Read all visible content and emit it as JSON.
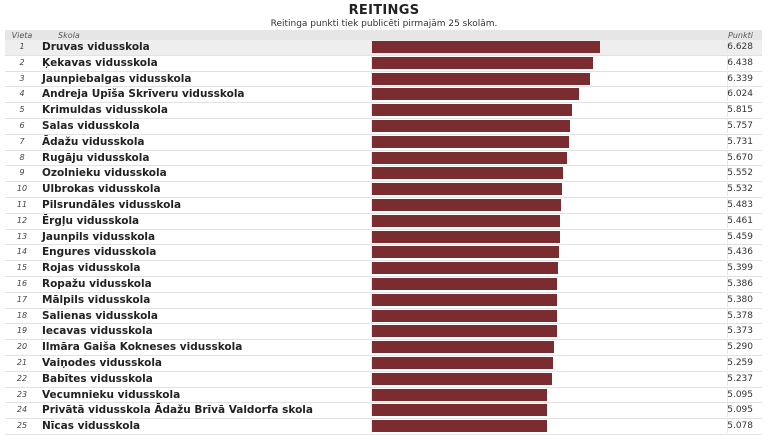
{
  "page": {
    "title": "REITINGS",
    "subtitle": "Reitinga punkti tiek publicēti pirmajām 25 skolām."
  },
  "header": {
    "rank": "Vieta",
    "school": "Skola",
    "points": "Punkti"
  },
  "colors": {
    "bar": "#7a2c30",
    "header_bg": "#e6e6e6",
    "first_row_bg": "#eeeeee"
  },
  "max_points": 6.628,
  "rows": [
    {
      "rank": "1",
      "school": "Druvas vidusskola",
      "points": "6.628"
    },
    {
      "rank": "2",
      "school": "Ķekavas vidusskola",
      "points": "6.438"
    },
    {
      "rank": "3",
      "school": "Jaunpiebalgas vidusskola",
      "points": "6.339"
    },
    {
      "rank": "4",
      "school": "Andreja Upīša Skrīveru vidusskola",
      "points": "6.024"
    },
    {
      "rank": "5",
      "school": "Krimuldas vidusskola",
      "points": "5.815"
    },
    {
      "rank": "6",
      "school": "Salas vidusskola",
      "points": "5.757"
    },
    {
      "rank": "7",
      "school": "Ādažu vidusskola",
      "points": "5.731"
    },
    {
      "rank": "8",
      "school": "Rugāju vidusskola",
      "points": "5.670"
    },
    {
      "rank": "9",
      "school": "Ozolnieku vidusskola",
      "points": "5.552"
    },
    {
      "rank": "10",
      "school": "Ulbrokas vidusskola",
      "points": "5.532"
    },
    {
      "rank": "11",
      "school": "Pilsrundāles vidusskola",
      "points": "5.483"
    },
    {
      "rank": "12",
      "school": "Ērgļu vidusskola",
      "points": "5.461"
    },
    {
      "rank": "13",
      "school": "Jaunpils vidusskola",
      "points": "5.459"
    },
    {
      "rank": "14",
      "school": "Engures vidusskola",
      "points": "5.436"
    },
    {
      "rank": "15",
      "school": "Rojas vidusskola",
      "points": "5.399"
    },
    {
      "rank": "16",
      "school": "Ropažu vidusskola",
      "points": "5.386"
    },
    {
      "rank": "17",
      "school": "Mālpils vidusskola",
      "points": "5.380"
    },
    {
      "rank": "18",
      "school": "Salienas vidusskola",
      "points": "5.378"
    },
    {
      "rank": "19",
      "school": "Iecavas vidusskola",
      "points": "5.373"
    },
    {
      "rank": "20",
      "school": "Ilmāra Gaiša Kokneses vidusskola",
      "points": "5.290"
    },
    {
      "rank": "21",
      "school": "Vaiņodes vidusskola",
      "points": "5.259"
    },
    {
      "rank": "22",
      "school": "Babītes vidusskola",
      "points": "5.237"
    },
    {
      "rank": "23",
      "school": "Vecumnieku vidusskola",
      "points": "5.095"
    },
    {
      "rank": "24",
      "school": "Privātā vidusskola Ādažu Brīvā Valdorfa skola",
      "points": "5.095"
    },
    {
      "rank": "25",
      "school": "Nīcas vidusskola",
      "points": "5.078"
    }
  ]
}
